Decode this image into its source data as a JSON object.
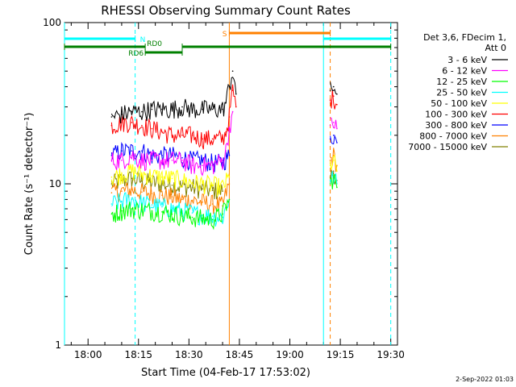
{
  "chart_data": {
    "type": "line",
    "title": "RHESSI Observing Summary Count Rates",
    "xlabel": "Start Time (04-Feb-17 17:53:02)",
    "ylabel": "Count Rate (s⁻¹ detector⁻¹)",
    "yscale": "log",
    "ylim": [
      1,
      100
    ],
    "xlim": [
      "17:53",
      "19:32"
    ],
    "x_ticks": [
      "18:00",
      "18:15",
      "18:30",
      "18:45",
      "19:00",
      "19:15",
      "19:30"
    ],
    "y_ticks": [
      "1",
      "10",
      "100"
    ],
    "legend_header": [
      "Det 3,6, FDecim 1,",
      "Att 0"
    ],
    "legend_placement": "right",
    "timestamp": "2-Sep-2022 01:03",
    "series": [
      {
        "name": "3 - 6 keV",
        "color": "#000000",
        "segments": [
          {
            "x": [
              "18:07",
              "18:10",
              "18:13",
              "18:16",
              "18:19",
              "18:22",
              "18:25",
              "18:28",
              "18:31",
              "18:34",
              "18:37",
              "18:40",
              "18:41",
              "18:42",
              "18:43",
              "18:44"
            ],
            "y": [
              26,
              27,
              28,
              28,
              29,
              29,
              29,
              30,
              29,
              29,
              29,
              29,
              32,
              40,
              50,
              36
            ]
          },
          {
            "x": [
              "19:12",
              "19:13",
              "19:14"
            ],
            "y": [
              38,
              40,
              36
            ]
          }
        ]
      },
      {
        "name": "6 - 12 keV",
        "color": "#ff00ff",
        "segments": [
          {
            "x": [
              "18:07",
              "18:10",
              "18:13",
              "18:16",
              "18:19",
              "18:22",
              "18:25",
              "18:28",
              "18:31",
              "18:34",
              "18:37",
              "18:40",
              "18:41",
              "18:42",
              "18:43"
            ],
            "y": [
              14,
              14,
              15,
              14,
              14,
              14,
              14,
              14,
              13,
              13,
              13,
              14,
              16,
              22,
              28
            ]
          },
          {
            "x": [
              "19:12",
              "19:13",
              "19:14"
            ],
            "y": [
              23,
              24,
              22
            ]
          }
        ]
      },
      {
        "name": "12 - 25 keV",
        "color": "#00ff00",
        "segments": [
          {
            "x": [
              "18:07",
              "18:10",
              "18:13",
              "18:16",
              "18:19",
              "18:22",
              "18:25",
              "18:28",
              "18:31",
              "18:34",
              "18:37",
              "18:40",
              "18:42"
            ],
            "y": [
              6.5,
              6.8,
              7,
              6.9,
              6.8,
              6.7,
              6.5,
              6.3,
              6.2,
              6.1,
              6,
              6.5,
              8
            ]
          },
          {
            "x": [
              "19:12",
              "19:13",
              "19:14"
            ],
            "y": [
              10,
              11,
              9.5
            ]
          }
        ]
      },
      {
        "name": "25 - 50 keV",
        "color": "#00ffff",
        "segments": [
          {
            "x": [
              "18:07",
              "18:10",
              "18:13",
              "18:16",
              "18:19",
              "18:22",
              "18:25",
              "18:28",
              "18:31",
              "18:34",
              "18:37",
              "18:40",
              "18:42"
            ],
            "y": [
              7.5,
              7.8,
              8,
              7.6,
              7.4,
              7.2,
              7,
              6.8,
              6.6,
              6.4,
              6.3,
              6.2,
              8
            ]
          },
          {
            "x": [
              "19:12",
              "19:13",
              "19:14"
            ],
            "y": [
              10.5,
              11,
              10
            ]
          }
        ]
      },
      {
        "name": "50 - 100 keV",
        "color": "#ffff00",
        "segments": [
          {
            "x": [
              "18:07",
              "18:10",
              "18:13",
              "18:16",
              "18:19",
              "18:22",
              "18:25",
              "18:28",
              "18:31",
              "18:34",
              "18:37",
              "18:40",
              "18:42"
            ],
            "y": [
              11,
              11.5,
              12,
              11.5,
              11.2,
              11,
              10.8,
              10.5,
              10.2,
              10,
              9.8,
              9.5,
              11
            ]
          },
          {
            "x": [
              "19:12",
              "19:13",
              "19:14"
            ],
            "y": [
              13,
              14,
              12
            ]
          }
        ]
      },
      {
        "name": "100 - 300 keV",
        "color": "#ff0000",
        "segments": [
          {
            "x": [
              "18:07",
              "18:10",
              "18:13",
              "18:16",
              "18:19",
              "18:22",
              "18:25",
              "18:28",
              "18:31",
              "18:34",
              "18:37",
              "18:40",
              "18:41",
              "18:42",
              "18:43",
              "18:44"
            ],
            "y": [
              23,
              24,
              24,
              23,
              22,
              21,
              20,
              20,
              20,
              19,
              19,
              19,
              21,
              26,
              38,
              30
            ]
          },
          {
            "x": [
              "19:12",
              "19:13",
              "19:14"
            ],
            "y": [
              33,
              35,
              31
            ]
          }
        ]
      },
      {
        "name": "300 - 800 keV",
        "color": "#0000ff",
        "segments": [
          {
            "x": [
              "18:07",
              "18:10",
              "18:13",
              "18:16",
              "18:19",
              "18:22",
              "18:25",
              "18:28",
              "18:31",
              "18:34",
              "18:37",
              "18:40",
              "18:42"
            ],
            "y": [
              15,
              16,
              16,
              16,
              15,
              15,
              15,
              14.5,
              14,
              14,
              13.5,
              13.5,
              15
            ]
          },
          {
            "x": [
              "19:12",
              "19:13",
              "19:14"
            ],
            "y": [
              19,
              20,
              18
            ]
          }
        ]
      },
      {
        "name": "800 - 7000 keV",
        "color": "#ff8000",
        "segments": [
          {
            "x": [
              "18:07",
              "18:10",
              "18:13",
              "18:16",
              "18:19",
              "18:22",
              "18:25",
              "18:28",
              "18:31",
              "18:34",
              "18:37",
              "18:40",
              "18:42"
            ],
            "y": [
              8.8,
              9,
              9.2,
              8.9,
              8.7,
              8.5,
              8.3,
              8,
              7.9,
              7.7,
              7.5,
              7.3,
              10
            ]
          },
          {
            "x": [
              "19:12",
              "19:13",
              "19:14"
            ],
            "y": [
              14,
              15,
              13
            ]
          }
        ]
      },
      {
        "name": "7000 - 15000 keV",
        "color": "#808000",
        "segments": [
          {
            "x": [
              "18:07",
              "18:10",
              "18:13",
              "18:16",
              "18:19",
              "18:22",
              "18:25",
              "18:28",
              "18:31",
              "18:34",
              "18:37",
              "18:40"
            ],
            "y": [
              10,
              10.5,
              10.8,
              10.4,
              10.2,
              10,
              9.8,
              9.6,
              9.5,
              9.3,
              9.1,
              9
            ]
          },
          {
            "x": [
              "19:12",
              "19:13",
              "19:14"
            ],
            "y": [
              11,
              12,
              10.5
            ]
          }
        ]
      }
    ],
    "flag_bars": [
      {
        "label": "N",
        "color": "#00ffff",
        "segments": [
          [
            "17:53",
            "18:14"
          ],
          [
            "19:10",
            "19:30"
          ]
        ]
      },
      {
        "label": "S",
        "color": "#ff8000",
        "segments": [
          [
            "18:42",
            "19:12"
          ]
        ]
      },
      {
        "label": "RD0",
        "color": "#008000",
        "segments": [
          [
            "17:53",
            "18:17"
          ],
          [
            "18:28",
            "19:30"
          ]
        ]
      },
      {
        "label": "RD6",
        "color": "#008000",
        "segments": [
          [
            "18:17",
            "18:28"
          ]
        ]
      }
    ],
    "vertical_markers": [
      {
        "x": "17:53",
        "color": "#00ffff",
        "style": "solid"
      },
      {
        "x": "18:14",
        "color": "#00ffff",
        "style": "dashed"
      },
      {
        "x": "18:42",
        "color": "#ff8000",
        "style": "solid"
      },
      {
        "x": "19:10",
        "color": "#00ffff",
        "style": "solid"
      },
      {
        "x": "19:12",
        "color": "#ff8000",
        "style": "dashed"
      },
      {
        "x": "19:30",
        "color": "#00ffff",
        "style": "dashed"
      }
    ]
  }
}
